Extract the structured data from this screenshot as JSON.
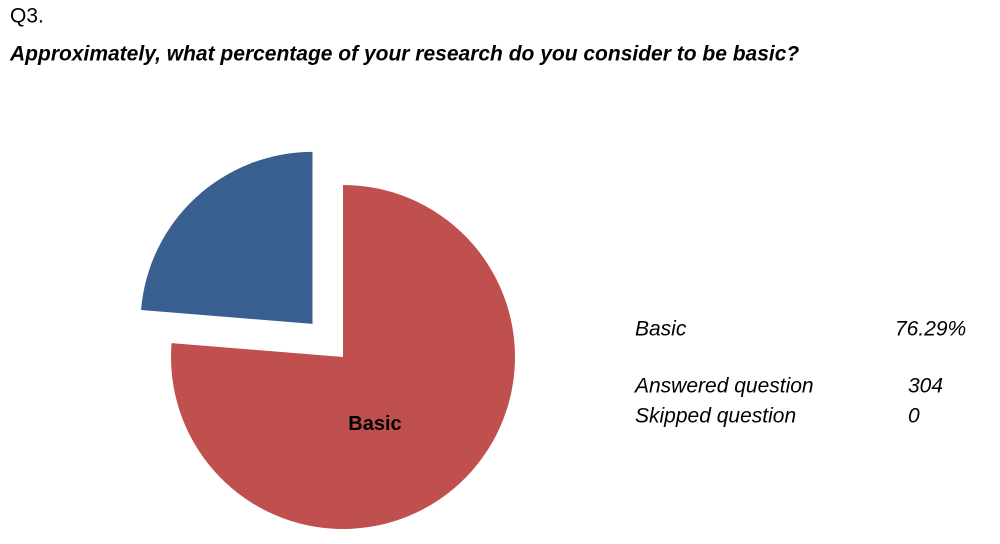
{
  "question_number": "Q3.",
  "chart_data": {
    "type": "pie",
    "title": "Approximately, what percentage of your research do you consider to be basic?",
    "categories": [
      "Basic",
      null
    ],
    "values": [
      76.29,
      23.71
    ],
    "value_labels": [
      "76.29%",
      null
    ],
    "colors": [
      "#c0504d",
      "#385f8f"
    ]
  },
  "stats": [
    {
      "label": "Answered question",
      "value": 304
    },
    {
      "label": "Skipped question",
      "value": 0
    }
  ]
}
